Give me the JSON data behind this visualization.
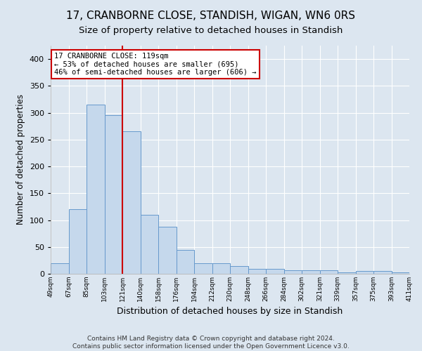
{
  "title": "17, CRANBORNE CLOSE, STANDISH, WIGAN, WN6 0RS",
  "subtitle": "Size of property relative to detached houses in Standish",
  "xlabel": "Distribution of detached houses by size in Standish",
  "ylabel": "Number of detached properties",
  "footer_line1": "Contains HM Land Registry data © Crown copyright and database right 2024.",
  "footer_line2": "Contains public sector information licensed under the Open Government Licence v3.0.",
  "bin_labels": [
    "49sqm",
    "67sqm",
    "85sqm",
    "103sqm",
    "121sqm",
    "140sqm",
    "158sqm",
    "176sqm",
    "194sqm",
    "212sqm",
    "230sqm",
    "248sqm",
    "266sqm",
    "284sqm",
    "302sqm",
    "321sqm",
    "339sqm",
    "357sqm",
    "375sqm",
    "393sqm",
    "411sqm"
  ],
  "bar_values": [
    20,
    120,
    315,
    295,
    265,
    110,
    88,
    44,
    20,
    20,
    15,
    9,
    9,
    7,
    7,
    6,
    3,
    5,
    5,
    3
  ],
  "bar_color": "#c5d8ec",
  "bar_edge_color": "#6699cc",
  "annotation_line1": "17 CRANBORNE CLOSE: 119sqm",
  "annotation_line2": "← 53% of detached houses are smaller (695)",
  "annotation_line3": "46% of semi-detached houses are larger (606) →",
  "annotation_box_color": "white",
  "annotation_box_edge_color": "#cc0000",
  "marker_line_color": "#cc0000",
  "ylim": [
    0,
    425
  ],
  "yticks": [
    0,
    50,
    100,
    150,
    200,
    250,
    300,
    350,
    400
  ],
  "background_color": "#dce6f0",
  "plot_background_color": "#dce6f0",
  "grid_color": "white",
  "title_fontsize": 11,
  "subtitle_fontsize": 9.5,
  "ylabel_fontsize": 8.5,
  "xlabel_fontsize": 9
}
